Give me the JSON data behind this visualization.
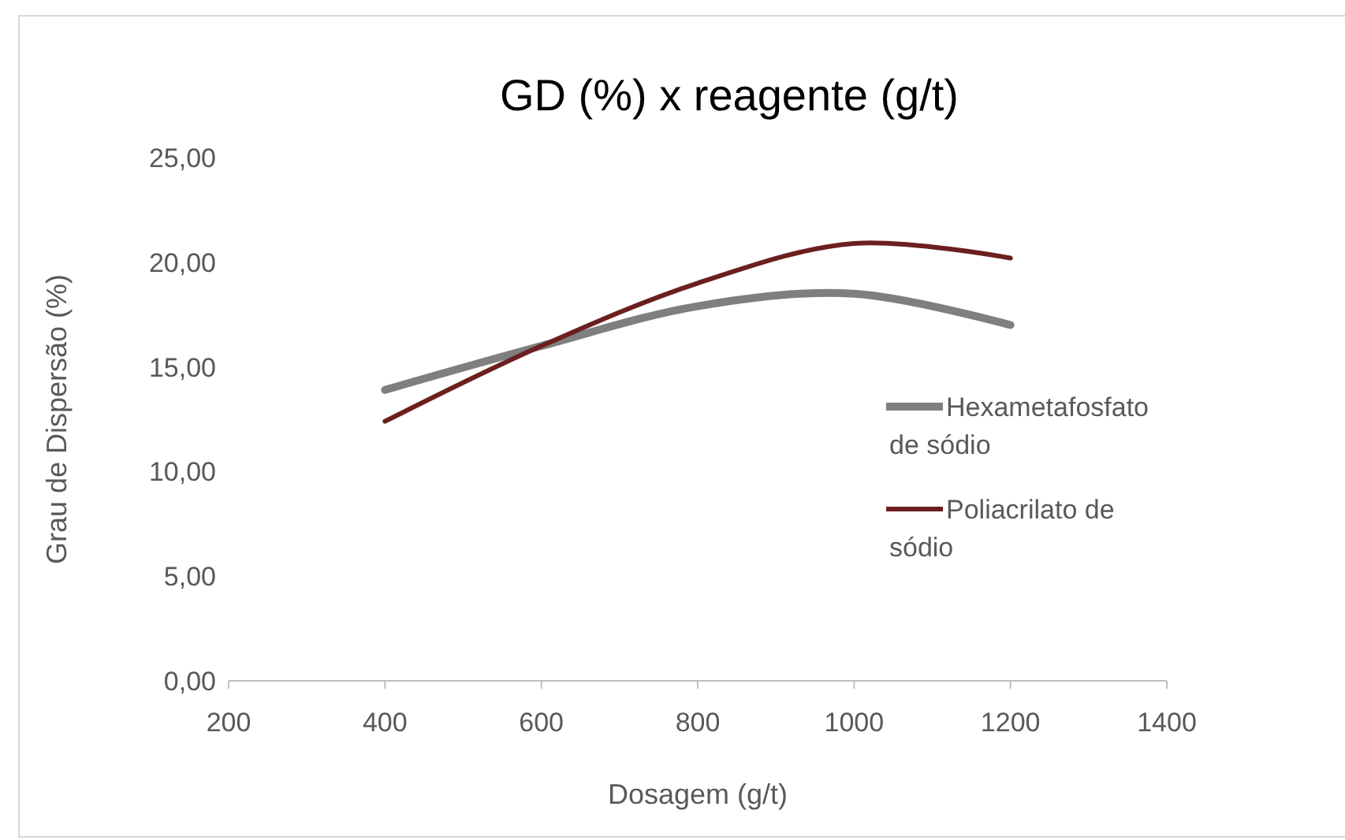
{
  "chart_data": {
    "type": "line",
    "title": "GD (%) x reagente (g/t)",
    "xlabel": "Dosagem (g/t)",
    "ylabel": "Grau de Dispersão (%)",
    "x": [
      400,
      600,
      800,
      1000,
      1200
    ],
    "series": [
      {
        "name": "Hexametafosfato de sódio",
        "color": "#7f7f7f",
        "values": [
          13.9,
          16.0,
          17.9,
          18.5,
          17.0
        ]
      },
      {
        "name": "Poliacrilato de sódio",
        "color": "#6b1f1f",
        "values": [
          12.4,
          16.0,
          19.0,
          20.9,
          20.2
        ]
      }
    ],
    "xlim": [
      200,
      1400
    ],
    "xticks": [
      200,
      400,
      600,
      800,
      1000,
      1200,
      1400
    ],
    "ylim": [
      0,
      25
    ],
    "yticks": [
      {
        "value": 0,
        "label": "0,00"
      },
      {
        "value": 5,
        "label": "5,00"
      },
      {
        "value": 10,
        "label": "10,00"
      },
      {
        "value": 15,
        "label": "15,00"
      },
      {
        "value": 20,
        "label": "20,00"
      },
      {
        "value": 25,
        "label": "25,00"
      }
    ],
    "grid": false,
    "legend": "right",
    "marker": "none",
    "line_style": "solid"
  }
}
